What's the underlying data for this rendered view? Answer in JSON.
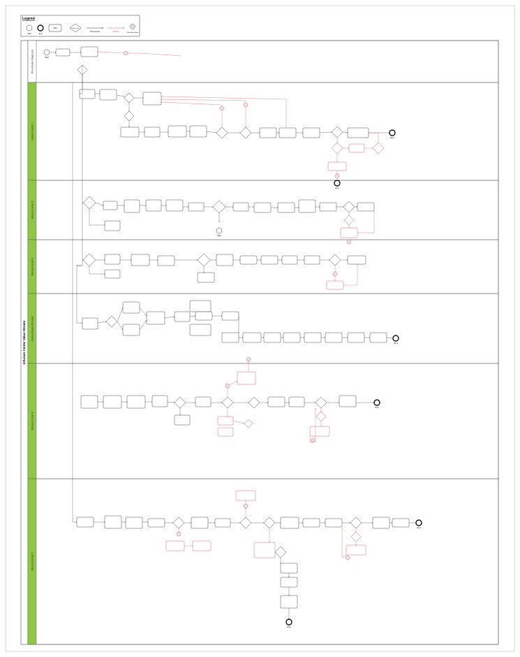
{
  "legend": {
    "title": "Legend",
    "items": [
      "Start",
      "End",
      "Task",
      "Decision",
      "Process flow",
      "Rework",
      "Time-delay Event"
    ]
  },
  "diagram_title": "Infusion Center Value Stream",
  "lanes": [
    "Pre-Infusion Diagnosis",
    "Infusion Center 1",
    "Infusion Center 2",
    "Infusion Center 3",
    "Home Infusion Provider",
    "Infusion Center 4",
    "Infusion Center 5"
  ],
  "terminals": {
    "start": "Start",
    "end": "End"
  },
  "colors": {
    "lane_band": "#8fc744",
    "task_stroke": "#333333",
    "rework": "#e05050",
    "flow": "#333333",
    "border": "#999999"
  }
}
